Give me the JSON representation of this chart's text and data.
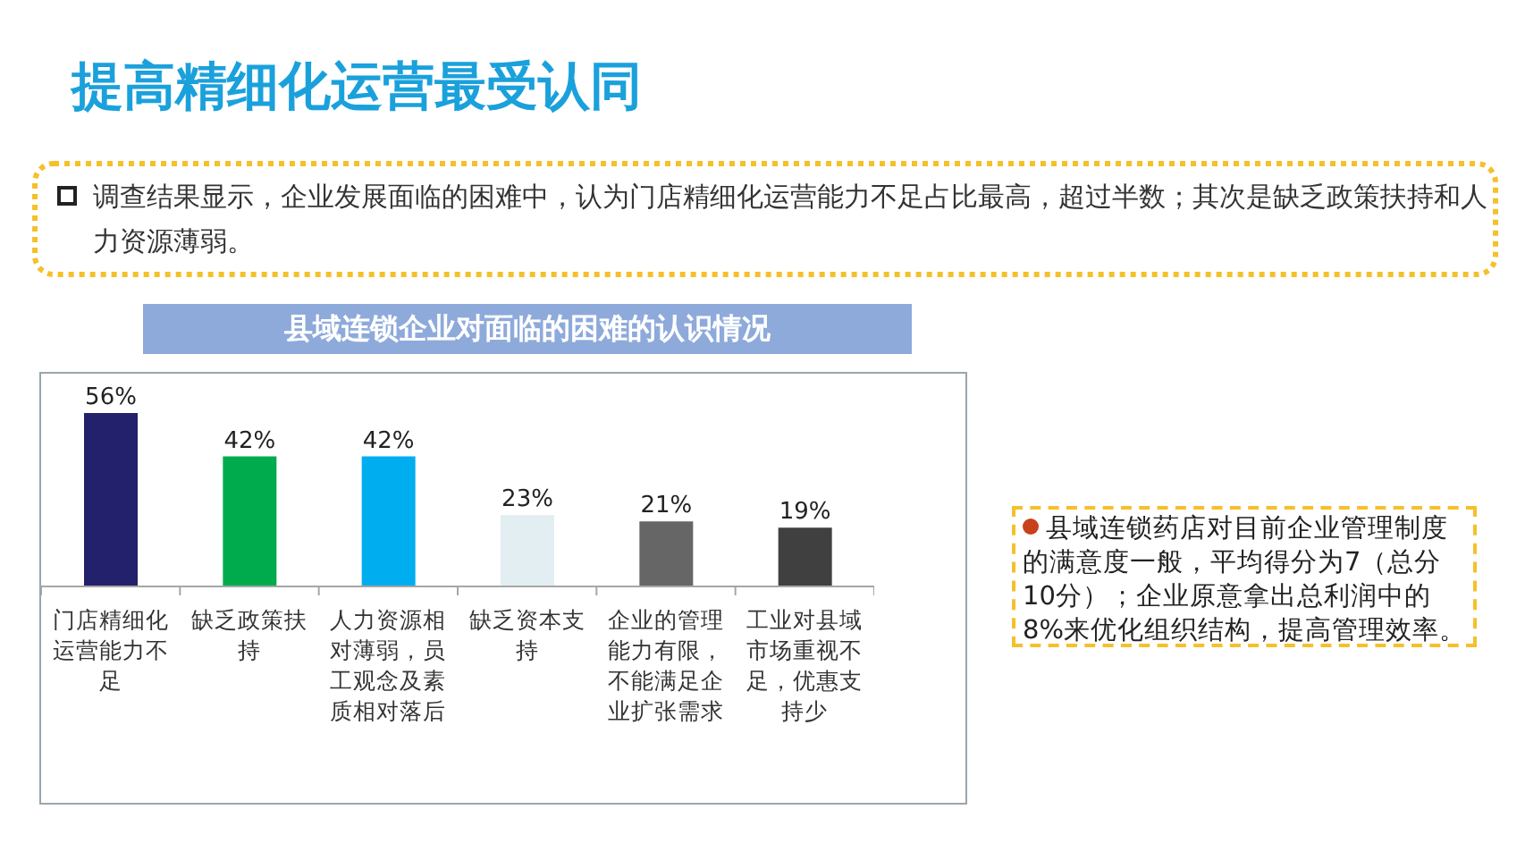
{
  "chart_data": {
    "type": "bar",
    "title": "提高精细化运营最受认同",
    "subtitle": "县域连锁企业对面临的困难的认识情况",
    "categories": [
      "门店精细化运营能力不足",
      "缺乏政策扶持",
      "人力资源相对薄弱，员工观念及素质相对落后",
      "缺乏资本支持",
      "企业的管理能力有限，不能满足企业扩张需求",
      "工业对县域市场重视不足，优惠支持少"
    ],
    "values": [
      56,
      42,
      42,
      23,
      21,
      19
    ],
    "colors": [
      "#23216b",
      "#00ab4e",
      "#00aeef",
      "#e2eef2",
      "#666666",
      "#404040"
    ],
    "value_labels": [
      "56%",
      "42%",
      "42%",
      "23%",
      "21%",
      "19%"
    ],
    "annotations": [
      "调查结果显示，企业发展面临的困难中，认为门店精细化运营能力不足占比最高，超过半数；其次是缺乏政策扶持和人力资源薄弱。",
      "县域连锁药店对目前企业管理制度的满意度一般，平均得分为7（总分10分）；企业原意拿出总利润中的8%来优化组织结构，提高管理效率。"
    ]
  }
}
